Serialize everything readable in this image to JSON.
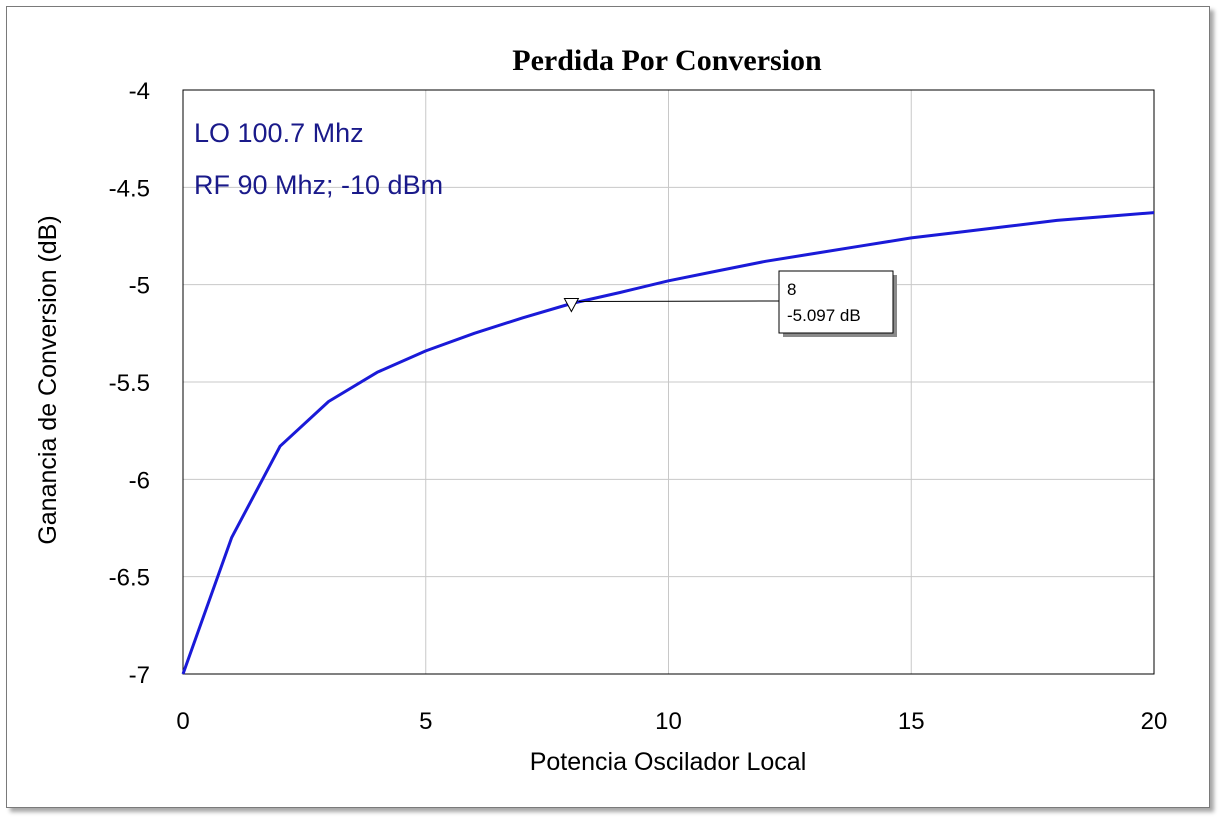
{
  "chart_data": {
    "type": "line",
    "title": "Perdida Por Conversion",
    "xlabel": "Potencia Oscilador Local",
    "ylabel": "Ganancia de Conversion (dB)",
    "xlim": [
      0,
      20
    ],
    "ylim": [
      -7,
      -4
    ],
    "x_ticks": [
      0,
      5,
      10,
      15,
      20
    ],
    "x_tick_labels": [
      "0",
      "5",
      "10",
      "15",
      "20"
    ],
    "y_ticks": [
      -4,
      -4.5,
      -5,
      -5.5,
      -6,
      -6.5,
      -7
    ],
    "y_tick_labels": [
      "-4",
      "-4.5",
      "-5",
      "-5.5",
      "-6",
      "-6.5",
      "-7"
    ],
    "grid": true,
    "series": [
      {
        "color": "#1a1ad8",
        "x": [
          0,
          1,
          2,
          3,
          4,
          5,
          6,
          7,
          8,
          9,
          10,
          11,
          12,
          13,
          14,
          15,
          16,
          17,
          18,
          19,
          20
        ],
        "y": [
          -7.0,
          -6.3,
          -5.83,
          -5.6,
          -5.45,
          -5.34,
          -5.25,
          -5.17,
          -5.097,
          -5.04,
          -4.98,
          -4.93,
          -4.88,
          -4.84,
          -4.8,
          -4.76,
          -4.73,
          -4.7,
          -4.67,
          -4.65,
          -4.63
        ]
      }
    ],
    "annotations": [
      {
        "text": "LO 100.7 Mhz",
        "color": "#1a1a8a"
      },
      {
        "text": "RF 90 Mhz; -10 dBm",
        "color": "#1a1a8a"
      }
    ],
    "marker": {
      "x": 8,
      "y": -5.097,
      "label_x": "8",
      "label_y": "-5.097 dB"
    }
  }
}
